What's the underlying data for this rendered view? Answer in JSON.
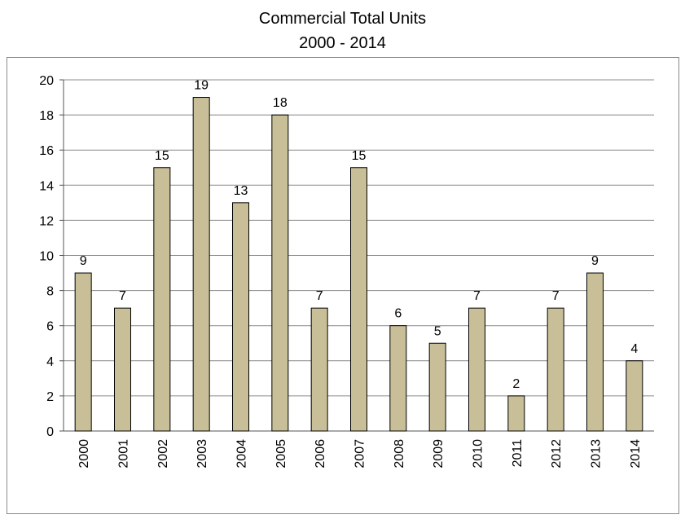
{
  "chart_data": {
    "type": "bar",
    "title": "Commercial Total Units",
    "subtitle": "2000 - 2014",
    "xlabel": "",
    "ylabel": "",
    "categories": [
      "2000",
      "2001",
      "2002",
      "2003",
      "2004",
      "2005",
      "2006",
      "2007",
      "2008",
      "2009",
      "2010",
      "2011",
      "2012",
      "2013",
      "2014"
    ],
    "values": [
      9,
      7,
      15,
      19,
      13,
      18,
      7,
      15,
      6,
      5,
      7,
      2,
      7,
      9,
      4
    ],
    "ylim": [
      0,
      20
    ],
    "yticks": [
      0,
      2,
      4,
      6,
      8,
      10,
      12,
      14,
      16,
      18,
      20
    ],
    "grid": true,
    "legend": "none",
    "data_labels": true,
    "bar_color": "#c8bf98",
    "bar_stroke": "#000000",
    "grid_color": "#8c8c8c"
  }
}
